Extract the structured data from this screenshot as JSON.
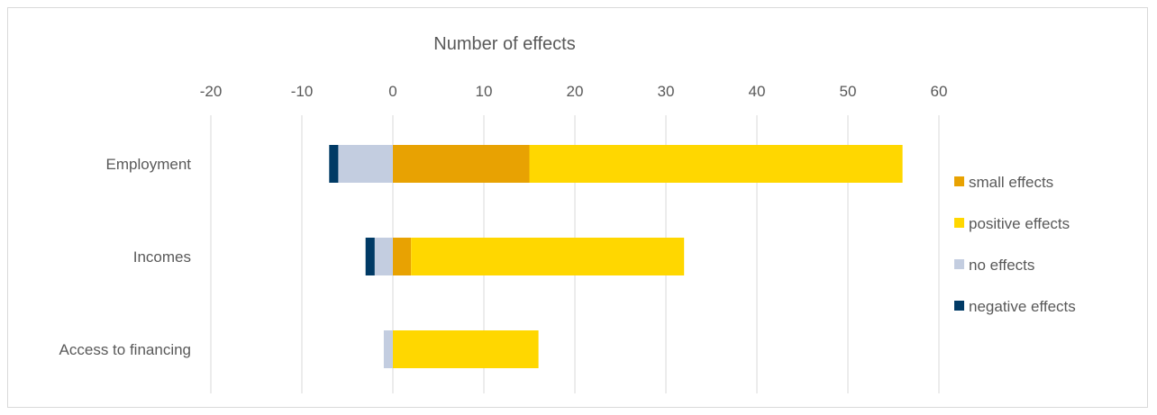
{
  "chart_data": {
    "type": "bar",
    "orientation": "horizontal",
    "stacked": true,
    "title": "Number of effects",
    "xlabel": "Number of effects",
    "ylabel": "",
    "xlim": [
      -20,
      65
    ],
    "xticks": [
      -20,
      -10,
      0,
      10,
      20,
      30,
      40,
      50,
      60
    ],
    "x_axis_position": "top",
    "grid": "vertical",
    "legend_position": "right",
    "categories": [
      "Employment",
      "Incomes",
      "Access to financing"
    ],
    "series": [
      {
        "name": "small effects",
        "color": "#E8A202",
        "values": [
          15,
          2,
          0
        ]
      },
      {
        "name": "positive effects",
        "color": "#FFD700",
        "values": [
          41,
          30,
          16
        ]
      },
      {
        "name": "no effects",
        "color": "#C3CDE0",
        "values": [
          -6,
          -2,
          -1
        ]
      },
      {
        "name": "negative effects",
        "color": "#003A65",
        "values": [
          -1,
          -1,
          0
        ]
      }
    ],
    "legend_order": [
      "small effects",
      "positive effects",
      "no effects",
      "negative effects"
    ]
  }
}
